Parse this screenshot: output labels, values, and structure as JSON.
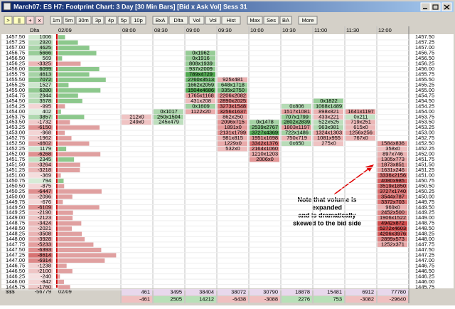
{
  "window": {
    "title": "March07: ES H7: Footprint Chart: 3 Day [30 Min Bars] [Bid x Ask Vol] Sess 31"
  },
  "toolbar": {
    "buttons": [
      ">",
      "||",
      "+",
      "x",
      "1m",
      "5m",
      "30m",
      "3p",
      "4p",
      "5p",
      "10p",
      "BxA",
      "Dlta",
      "Vol",
      "Vol",
      "Hist",
      "Max",
      "Ses",
      "BA",
      "More"
    ]
  },
  "header": {
    "delta_label": "Dlta",
    "date": "02/09",
    "times": [
      "08:00",
      "08:30",
      "09:00",
      "09:30",
      "10:00",
      "10:30",
      "11:00",
      "11:30",
      "12:00"
    ]
  },
  "prices": [
    "1457.50",
    "1457.25",
    "1457.00",
    "1456.75",
    "1456.50",
    "1456.25",
    "1456.00",
    "1455.75",
    "1455.50",
    "1455.25",
    "1455.00",
    "1454.75",
    "1454.50",
    "1454.25",
    "1454.00",
    "1453.75",
    "1453.50",
    "1453.25",
    "1453.00",
    "1452.75",
    "1452.50",
    "1452.25",
    "1452.00",
    "1451.75",
    "1451.50",
    "1451.25",
    "1451.00",
    "1450.75",
    "1450.50",
    "1450.25",
    "1450.00",
    "1449.75",
    "1449.50",
    "1449.25",
    "1449.00",
    "1448.75",
    "1448.50",
    "1448.25",
    "1448.00",
    "1447.75",
    "1447.50",
    "1447.25",
    "1447.00",
    "1446.75",
    "1446.50",
    "1446.25",
    "1446.00",
    "1445.75"
  ],
  "delta": [
    1006,
    2920,
    4625,
    5666,
    569,
    -3325,
    6099,
    4613,
    7072,
    1527,
    6280,
    2944,
    3578,
    -995,
    402,
    3857,
    -1732,
    -6150,
    -968,
    -1962,
    -4602,
    1179,
    -6268,
    2345,
    -3264,
    -3218,
    -369,
    794,
    -875,
    -6447,
    -2096,
    -676,
    -6109,
    -2190,
    -2123,
    -3424,
    -2021,
    -3508,
    -3928,
    -5233,
    -6393,
    -8614,
    -6914,
    -1238,
    -2100,
    -240,
    -842,
    -1760
  ],
  "columns": [
    {
      "cells": [
        {
          "price": 1453.75,
          "label": "212x0"
        },
        {
          "price": 1453.5,
          "label": "249x0"
        }
      ]
    },
    {
      "cells": [
        {
          "price": 1454.0,
          "label": "0x1017"
        },
        {
          "price": 1453.75,
          "label": "250x1504"
        },
        {
          "price": 1453.5,
          "label": "245x479"
        }
      ]
    },
    {
      "cells": [
        {
          "price": 1456.75,
          "label": "0x1962"
        },
        {
          "price": 1456.5,
          "label": "0x1916"
        },
        {
          "price": 1456.25,
          "label": "808x1939"
        },
        {
          "price": 1456.0,
          "label": "937x2009"
        },
        {
          "price": 1455.75,
          "label": "789x4729"
        },
        {
          "price": 1455.5,
          "label": "2760x3513"
        },
        {
          "price": 1455.25,
          "label": "1662x2059"
        },
        {
          "price": 1455.0,
          "label": "1504x4686"
        },
        {
          "price": 1454.75,
          "label": "1765x1168"
        },
        {
          "price": 1454.5,
          "label": "431x208"
        },
        {
          "price": 1454.25,
          "label": "0x1609"
        },
        {
          "price": 1454.0,
          "label": "1122x20"
        }
      ]
    },
    {
      "cells": [
        {
          "price": 1455.5,
          "label": "925x481"
        },
        {
          "price": 1455.25,
          "label": "648x1718"
        },
        {
          "price": 1455.0,
          "label": "335x2750"
        },
        {
          "price": 1454.75,
          "label": "2206x2082"
        },
        {
          "price": 1454.5,
          "label": "2890x2025"
        },
        {
          "price": 1454.25,
          "label": "3273x1548"
        },
        {
          "price": 1454.0,
          "label": "3256x1637"
        },
        {
          "price": 1453.75,
          "label": "862x250"
        },
        {
          "price": 1453.5,
          "label": "2096x715"
        },
        {
          "price": 1453.25,
          "label": "1891x0"
        },
        {
          "price": 1453.0,
          "label": "2131x1799"
        },
        {
          "price": 1452.75,
          "label": "981x815"
        },
        {
          "price": 1452.5,
          "label": "1229x0"
        },
        {
          "price": 1452.25,
          "label": "532x0"
        }
      ]
    },
    {
      "cells": [
        {
          "price": 1453.5,
          "label": "0x1478"
        },
        {
          "price": 1453.25,
          "label": "2539x2767"
        },
        {
          "price": 1453.0,
          "label": "3727x4369"
        },
        {
          "price": 1452.75,
          "label": "1951x1698"
        },
        {
          "price": 1452.5,
          "label": "3342x1376"
        },
        {
          "price": 1452.25,
          "label": "2164x1060"
        },
        {
          "price": 1452.0,
          "label": "1210x1203"
        },
        {
          "price": 1451.75,
          "label": "2006x0"
        }
      ]
    },
    {
      "cells": [
        {
          "price": 1454.25,
          "label": "0x806"
        },
        {
          "price": 1454.0,
          "label": "1517x1081"
        },
        {
          "price": 1453.75,
          "label": "707x1799"
        },
        {
          "price": 1453.5,
          "label": "2802x2839"
        },
        {
          "price": 1453.25,
          "label": "1803x1197"
        },
        {
          "price": 1453.0,
          "label": "722x1486"
        },
        {
          "price": 1452.75,
          "label": "750x719"
        },
        {
          "price": 1452.5,
          "label": "0x650"
        }
      ]
    },
    {
      "cells": [
        {
          "price": 1454.5,
          "label": "0x1822"
        },
        {
          "price": 1454.25,
          "label": "1068x1489"
        },
        {
          "price": 1454.0,
          "label": "898x821"
        },
        {
          "price": 1453.75,
          "label": "433x221"
        },
        {
          "price": 1453.5,
          "label": "522x525"
        },
        {
          "price": 1453.25,
          "label": "963x981"
        },
        {
          "price": 1453.0,
          "label": "1324x1303"
        },
        {
          "price": 1452.75,
          "label": "1081x955"
        },
        {
          "price": 1452.5,
          "label": "275x0"
        }
      ]
    },
    {
      "cells": [
        {
          "price": 1454.0,
          "label": "1641x1197"
        },
        {
          "price": 1453.75,
          "label": "0x211"
        },
        {
          "price": 1453.5,
          "label": "719x251"
        },
        {
          "price": 1453.25,
          "label": "615x0"
        },
        {
          "price": 1453.0,
          "label": "1256x256"
        },
        {
          "price": 1452.75,
          "label": "767x0"
        }
      ]
    },
    {
      "cells": [
        {
          "price": 1452.5,
          "label": "1584x836"
        },
        {
          "price": 1452.25,
          "label": "358x0"
        },
        {
          "price": 1452.0,
          "label": "897x746"
        },
        {
          "price": 1451.75,
          "label": "1305x773"
        },
        {
          "price": 1451.5,
          "label": "1873x851"
        },
        {
          "price": 1451.25,
          "label": "1631x246"
        },
        {
          "price": 1451.0,
          "label": "3336x2156"
        },
        {
          "price": 1450.75,
          "label": "4080x985"
        },
        {
          "price": 1450.5,
          "label": "3519x1850"
        },
        {
          "price": 1450.25,
          "label": "3727x1740"
        },
        {
          "price": 1450.0,
          "label": "3544x787"
        },
        {
          "price": 1449.75,
          "label": "3372x703"
        },
        {
          "price": 1449.5,
          "label": "969x0"
        },
        {
          "price": 1449.25,
          "label": "2452x500"
        },
        {
          "price": 1449.0,
          "label": "1906x1522"
        },
        {
          "price": 1448.75,
          "label": "4942x872"
        },
        {
          "price": 1448.5,
          "label": "5272x4603"
        },
        {
          "price": 1448.25,
          "label": "4206x3976"
        },
        {
          "price": 1448.0,
          "label": "2899x573"
        },
        {
          "price": 1447.75,
          "label": "1252x371"
        }
      ]
    }
  ],
  "footer": {
    "label": "$$$",
    "delta_total": -56779,
    "date": "02/09",
    "totals": [
      [
        461,
        -461
      ],
      [
        3495,
        2505
      ],
      [
        38404,
        14212
      ],
      [
        38072,
        -6438
      ],
      [
        30790,
        -3088
      ],
      [
        18878,
        2276
      ],
      [
        15481,
        753
      ],
      [
        6912,
        -3082
      ],
      [
        77780,
        -29640
      ]
    ]
  },
  "annotation": {
    "lines": [
      "Note that volume is",
      "expanded",
      "and is dramatically",
      "skewed to the bid side"
    ]
  }
}
